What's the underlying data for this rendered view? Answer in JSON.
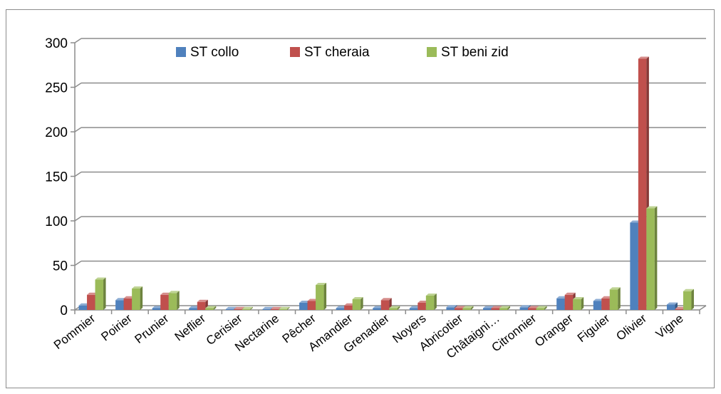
{
  "chart_data": {
    "type": "bar",
    "title": "",
    "xlabel": "",
    "ylabel": "",
    "ylim": [
      0,
      300
    ],
    "yticks": [
      0,
      50,
      100,
      150,
      200,
      250,
      300
    ],
    "grid": true,
    "legend_position": "top",
    "categories": [
      "Pommier",
      "Poirier",
      "Prunier",
      "Neflier",
      "Cerisier",
      "Nectarine",
      "Pêcher",
      "Amandier",
      "Grenadier",
      "Noyers",
      "Abricotier",
      "Châtaigni…",
      "Citronnier",
      "Oranger",
      "Figuier",
      "Olivier",
      "Vigne"
    ],
    "series": [
      {
        "name": "ST collo",
        "color": "#4f81bd",
        "values": [
          5,
          11,
          2,
          2,
          1,
          1,
          8,
          2,
          2,
          2,
          3,
          2,
          3,
          13,
          10,
          98,
          6
        ]
      },
      {
        "name": "ST cheraia",
        "color": "#c0504d",
        "values": [
          17,
          13,
          17,
          9,
          1,
          1,
          10,
          5,
          11,
          8,
          2,
          2,
          2,
          17,
          13,
          282,
          1
        ]
      },
      {
        "name": "ST beni zid",
        "color": "#9bbb59",
        "values": [
          34,
          24,
          19,
          2,
          1,
          1,
          28,
          12,
          2,
          16,
          2,
          2,
          2,
          12,
          23,
          114,
          21
        ]
      }
    ]
  }
}
